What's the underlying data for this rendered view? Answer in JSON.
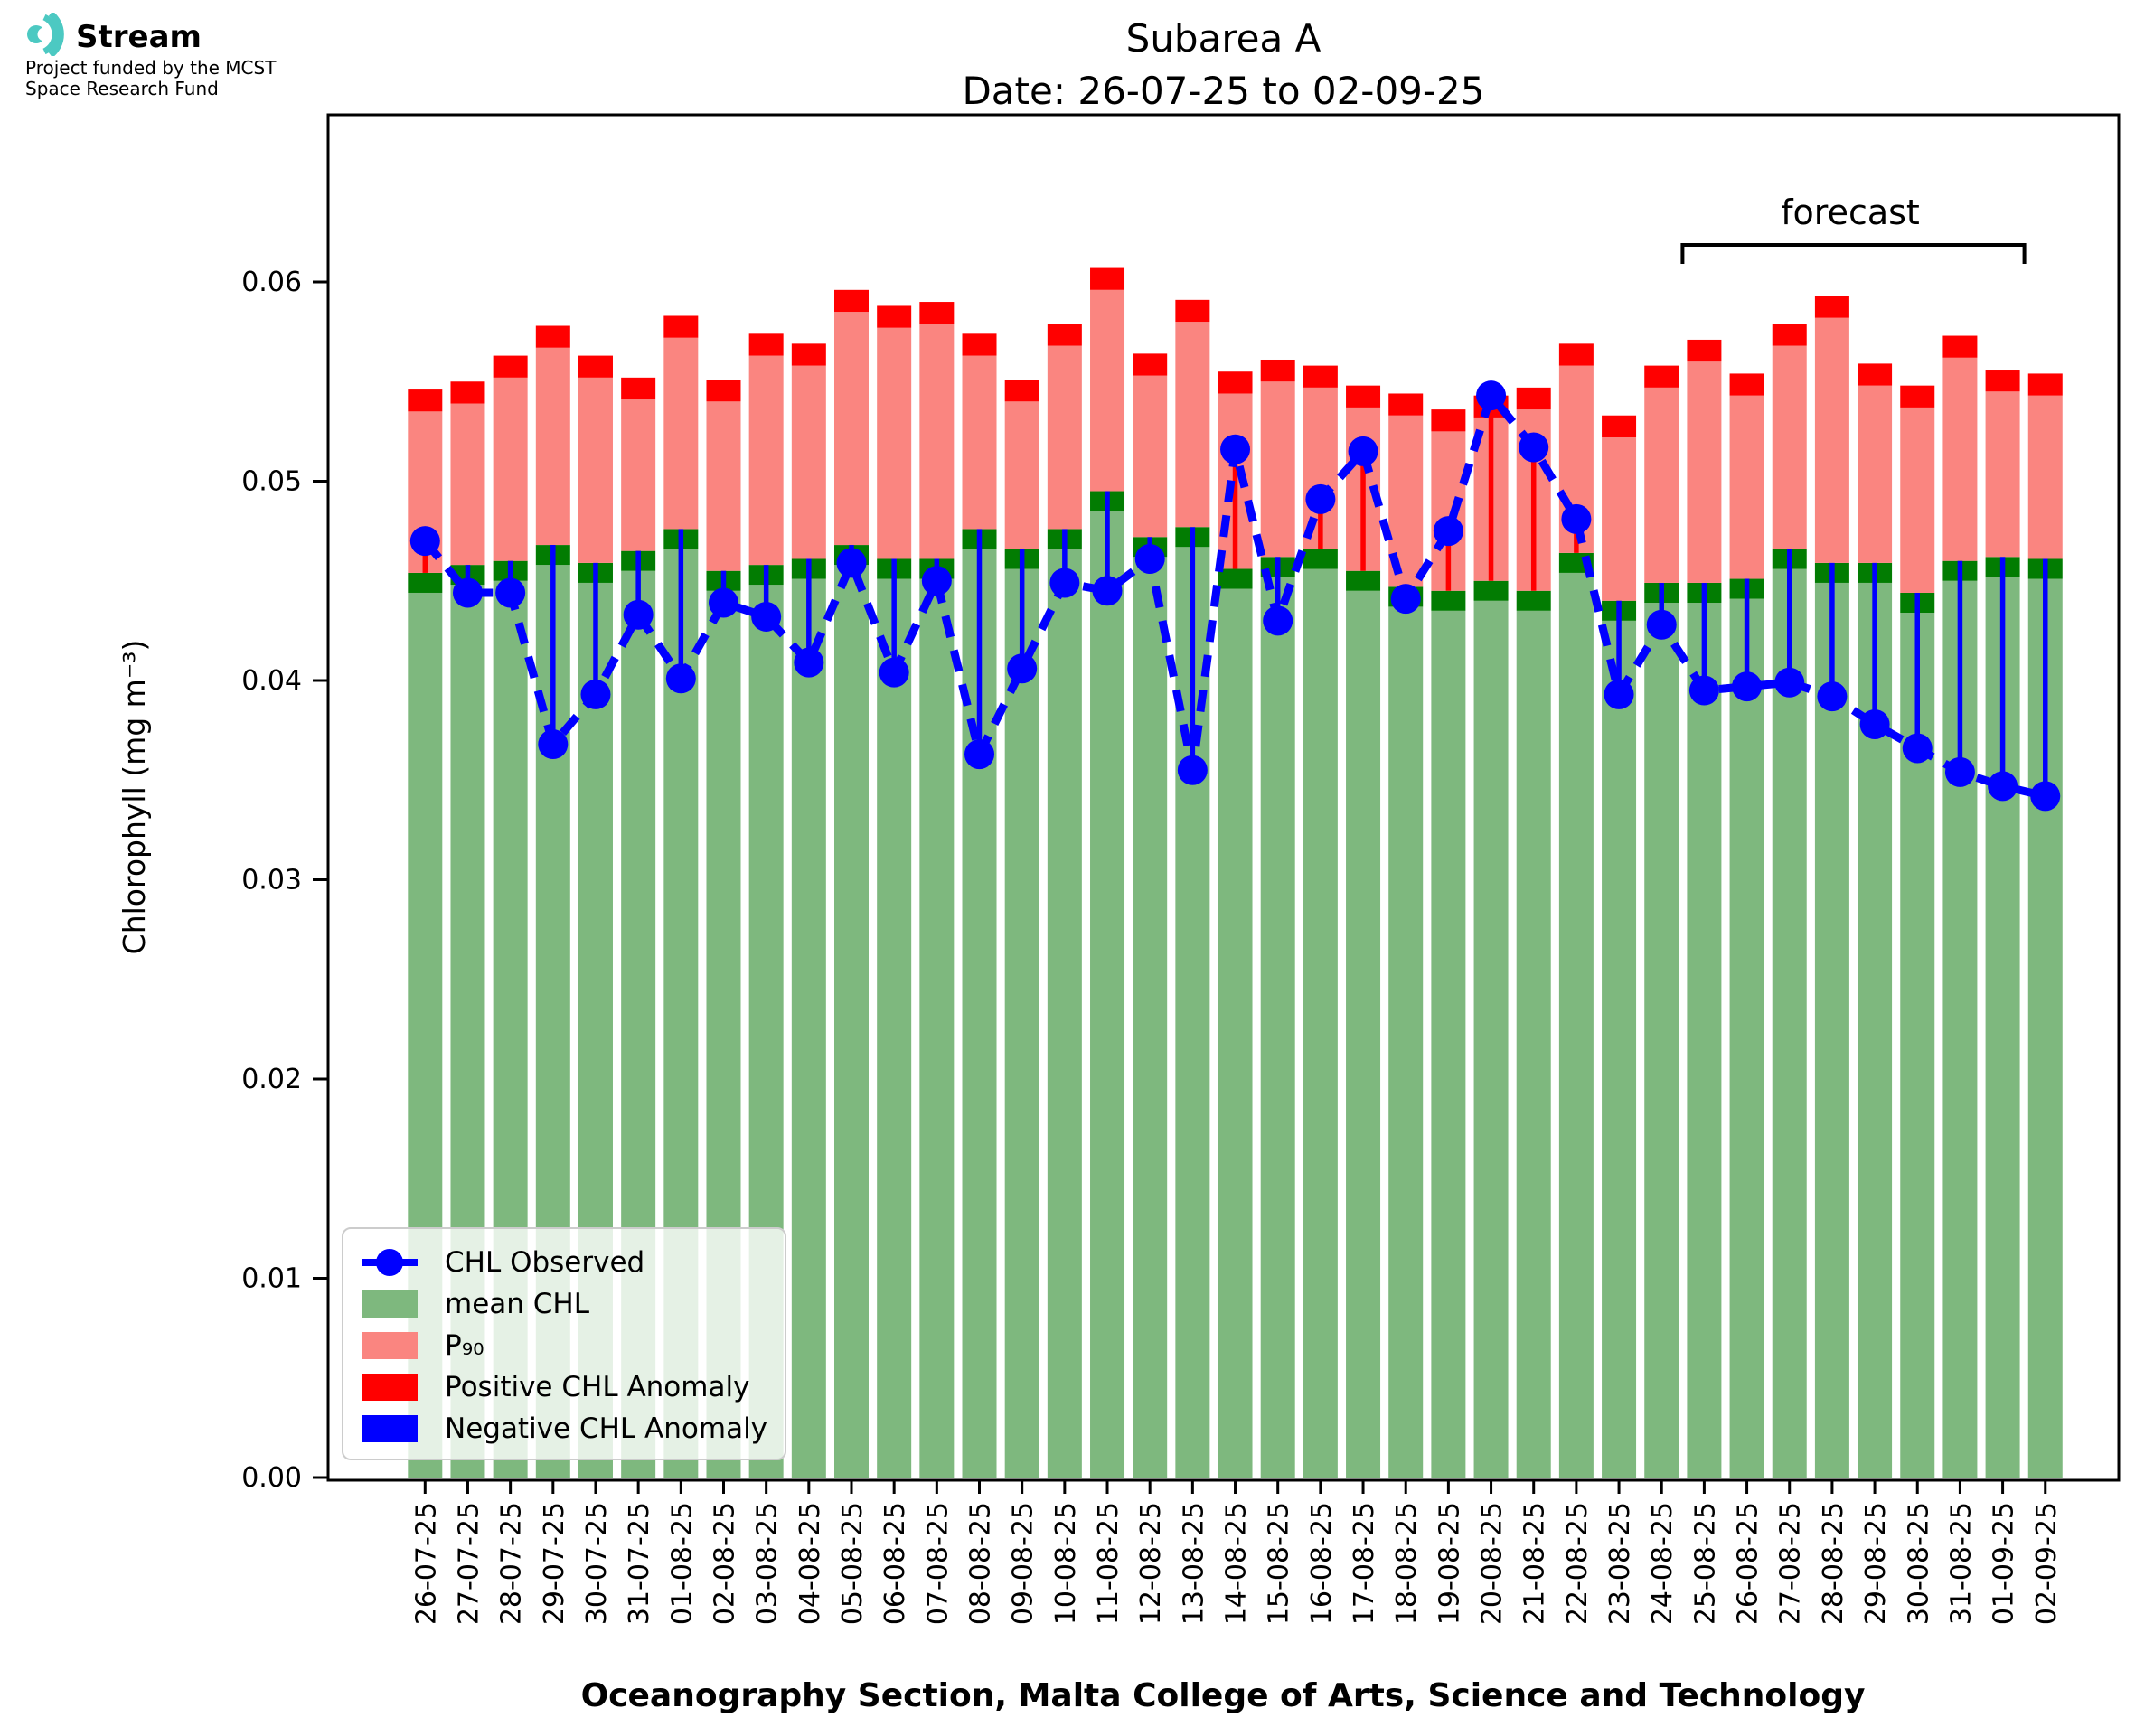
{
  "branding": {
    "app_name": "Stream",
    "funding_line1": "Project funded by the MCST",
    "funding_line2": "Space Research Fund",
    "logo_color": "#4cc9c2"
  },
  "title": {
    "line1": "Subarea A",
    "line2": "Date: 26-07-25 to 02-09-25"
  },
  "axes": {
    "ylabel": "Chlorophyll (mg m⁻³)",
    "xlabel": "Oceanography Section, Malta College of Arts, Science and Technology",
    "yticks": [
      "0.00",
      "0.01",
      "0.02",
      "0.03",
      "0.04",
      "0.05",
      "0.06"
    ]
  },
  "legend": {
    "items": [
      {
        "label": "CHL Observed",
        "swatch": "line-dot",
        "color_key": "observed"
      },
      {
        "label": "mean CHL",
        "swatch": "patch",
        "color_key": "mean"
      },
      {
        "label": "P₉₀",
        "swatch": "patch",
        "color_key": "p90"
      },
      {
        "label": "Positive CHL Anomaly",
        "swatch": "patch",
        "color_key": "positive"
      },
      {
        "label": "Negative CHL Anomaly",
        "swatch": "patch",
        "color_key": "negative"
      }
    ]
  },
  "colors": {
    "mean": "#7eb87e",
    "mean_marker": "#027c02",
    "p90": "#fa8580",
    "positive": "#ff0000",
    "negative": "#0000ff",
    "observed": "#0000ff",
    "axis": "#000000"
  },
  "annotations": {
    "forecast_label": "forecast",
    "forecast_start_index": 30,
    "forecast_end_index": 37
  },
  "chart_data": {
    "type": "bar",
    "title": "Subarea A — Date: 26-07-25 to 02-09-25",
    "xlabel": "Oceanography Section, Malta College of Arts, Science and Technology",
    "ylabel": "Chlorophyll (mg m⁻³)",
    "ylim": [
      0,
      0.0684
    ],
    "grid": false,
    "legend_position": "lower left",
    "mean_marker_band": 0.001,
    "p90_cap_band": 0.0011,
    "categories": [
      "26-07-25",
      "27-07-25",
      "28-07-25",
      "29-07-25",
      "30-07-25",
      "31-07-25",
      "01-08-25",
      "02-08-25",
      "03-08-25",
      "04-08-25",
      "05-08-25",
      "06-08-25",
      "07-08-25",
      "08-08-25",
      "09-08-25",
      "10-08-25",
      "11-08-25",
      "12-08-25",
      "13-08-25",
      "14-08-25",
      "15-08-25",
      "16-08-25",
      "17-08-25",
      "18-08-25",
      "19-08-25",
      "20-08-25",
      "21-08-25",
      "22-08-25",
      "23-08-25",
      "24-08-25",
      "25-08-25",
      "26-08-25",
      "27-08-25",
      "28-08-25",
      "29-08-25",
      "30-08-25",
      "31-08-25",
      "01-09-25",
      "02-09-25"
    ],
    "series": [
      {
        "name": "mean CHL",
        "type": "bar",
        "color_key": "mean",
        "values": [
          0.0444,
          0.0448,
          0.045,
          0.0458,
          0.0449,
          0.0455,
          0.0466,
          0.0445,
          0.0448,
          0.0451,
          0.0458,
          0.0451,
          0.0451,
          0.0466,
          0.0456,
          0.0466,
          0.0485,
          0.0462,
          0.0467,
          0.0446,
          0.0452,
          0.0456,
          0.0445,
          0.0437,
          0.0435,
          0.044,
          0.0435,
          0.0454,
          0.043,
          0.0439,
          0.0439,
          0.0441,
          0.0456,
          0.0449,
          0.0449,
          0.0434,
          0.045,
          0.0452,
          0.0451
        ]
      },
      {
        "name": "P90",
        "type": "bar",
        "color_key": "p90",
        "values": [
          0.0535,
          0.0539,
          0.0552,
          0.0567,
          0.0552,
          0.0541,
          0.0572,
          0.054,
          0.0563,
          0.0558,
          0.0585,
          0.0577,
          0.0579,
          0.0563,
          0.054,
          0.0568,
          0.0596,
          0.0553,
          0.058,
          0.0544,
          0.055,
          0.0547,
          0.0537,
          0.0533,
          0.0525,
          0.0532,
          0.0536,
          0.0558,
          0.0522,
          0.0547,
          0.056,
          0.0543,
          0.0568,
          0.0582,
          0.0548,
          0.0537,
          0.0562,
          0.0545,
          0.0543
        ]
      },
      {
        "name": "CHL Observed",
        "type": "line",
        "color_key": "observed",
        "values": [
          0.047,
          0.0444,
          0.0444,
          0.0368,
          0.0393,
          0.0433,
          0.0401,
          0.0439,
          0.0432,
          0.0409,
          0.0459,
          0.0404,
          0.045,
          0.0363,
          0.0406,
          0.0449,
          0.0445,
          0.0461,
          0.0355,
          0.0516,
          0.043,
          0.0491,
          0.0515,
          0.0441,
          0.0475,
          0.0543,
          0.0517,
          0.0481,
          0.0393,
          0.0428,
          0.0395,
          0.0397,
          0.0399,
          0.0392,
          0.0378,
          0.0366,
          0.0354,
          0.0347,
          0.0342
        ]
      }
    ]
  }
}
